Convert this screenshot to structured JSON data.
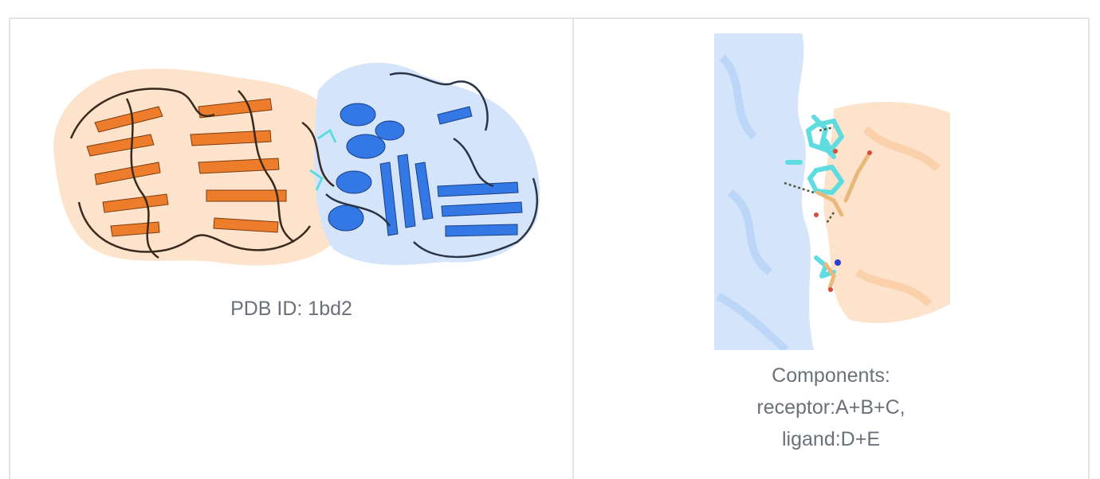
{
  "left_panel": {
    "caption": "PDB ID: 1bd2",
    "image_icon": "protein-complex-cartoon"
  },
  "right_panel": {
    "caption_line1": "Components:",
    "caption_line2": "receptor:A+B+C,",
    "caption_line3": "ligand:D+E",
    "image_icon": "binding-interface-closeup"
  },
  "colors": {
    "receptor_orange": "#ee7d2b",
    "receptor_surface": "#fde3cc",
    "ligand_blue": "#3478e6",
    "ligand_surface": "#d4e5fb",
    "ligand_stick_cyan": "#5fdce0",
    "receptor_stick_tan": "#e8b97a",
    "caption_gray": "#6b7079",
    "border": "#e4e4e4"
  }
}
